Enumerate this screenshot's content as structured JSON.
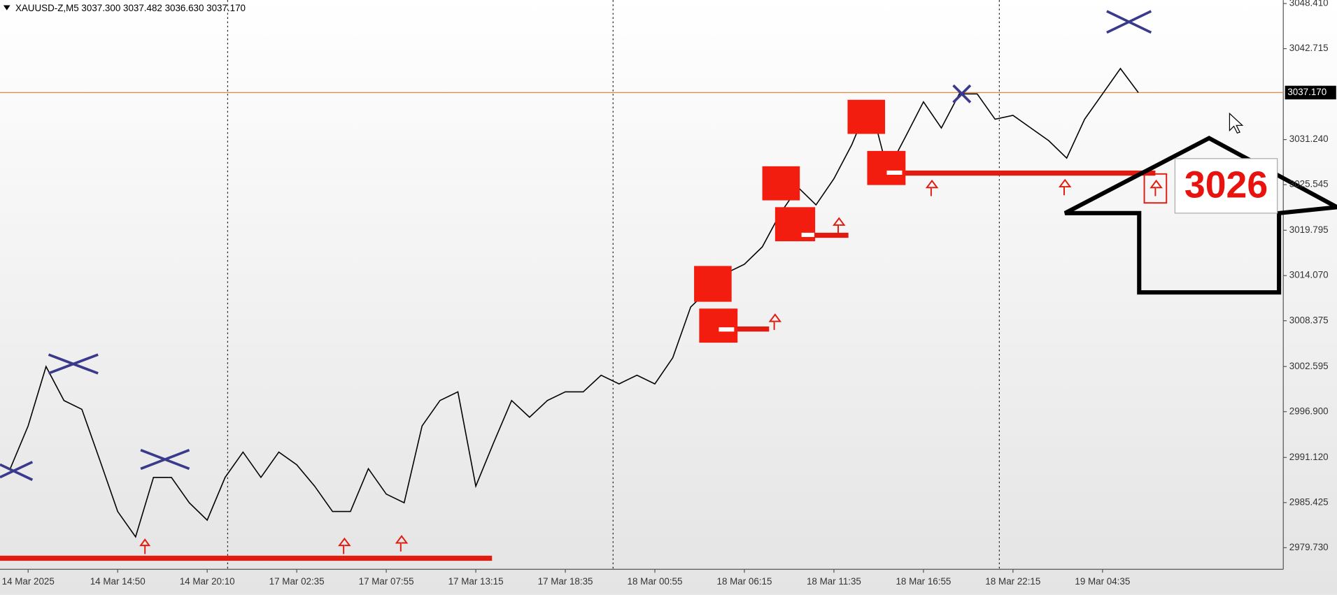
{
  "chart_data": {
    "type": "line",
    "title": "XAUUSD-Z,M5  3037.300 3037.482 3036.630 3037.170",
    "categories": [
      null,
      "14 Mar 2025",
      null,
      null,
      null,
      null,
      "14 Mar 14:50",
      null,
      null,
      null,
      null,
      "14 Mar 20:10",
      null,
      null,
      null,
      null,
      "17 Mar 02:35",
      null,
      null,
      null,
      null,
      "17 Mar 07:55",
      null,
      null,
      null,
      null,
      "17 Mar 13:15",
      null,
      null,
      null,
      null,
      "17 Mar 18:35",
      null,
      null,
      null,
      null,
      "18 Mar 00:55",
      null,
      null,
      null,
      null,
      "18 Mar 06:15",
      null,
      null,
      null,
      null,
      "18 Mar 11:35",
      null,
      null,
      null,
      null,
      "18 Mar 16:55",
      null,
      null,
      null,
      null,
      "18 Mar 22:15",
      null,
      null,
      null,
      null,
      "19 Mar 04:35",
      null,
      null
    ],
    "series": [
      {
        "name": "XAUUSD-Z,M5",
        "color": "#000000",
        "values": [
          2989.7,
          2995.1,
          3002.6,
          2998.3,
          2997.2,
          2990.8,
          2984.3,
          2981.1,
          2988.6,
          2988.6,
          2985.4,
          2983.2,
          2988.6,
          2991.8,
          2988.6,
          2991.8,
          2990.2,
          2987.5,
          2984.3,
          2984.3,
          2989.7,
          2986.5,
          2985.4,
          2995.1,
          2998.3,
          2999.4,
          2987.5,
          2993.0,
          2998.3,
          2996.2,
          2998.3,
          2999.4,
          2999.4,
          3001.5,
          3000.4,
          3001.5,
          3000.4,
          3003.7,
          3010.1,
          3012.3,
          3014.4,
          3015.5,
          3017.7,
          3021.9,
          3025.2,
          3023.0,
          3026.3,
          3030.6,
          3036.0,
          3027.3,
          3031.6,
          3036.0,
          3032.7,
          3037.0,
          3037.0,
          3033.8,
          3034.3,
          3032.7,
          3031.1,
          3028.9,
          3033.8,
          3037.0,
          3040.2,
          3037.17
        ]
      }
    ],
    "ylim": [
      2977.0,
      3048.84
    ],
    "yticks": [
      {
        "value": 3048.41,
        "label": "3048.410"
      },
      {
        "value": 3042.715,
        "label": "3042.715"
      },
      {
        "value": 3031.24,
        "label": "3031.240"
      },
      {
        "value": 3025.545,
        "label": "3025.545"
      },
      {
        "value": 3019.795,
        "label": "3019.795"
      },
      {
        "value": 3014.07,
        "label": "3014.070"
      },
      {
        "value": 3008.375,
        "label": "3008.375"
      },
      {
        "value": 3002.595,
        "label": "3002.595"
      },
      {
        "value": 2996.9,
        "label": "2996.900"
      },
      {
        "value": 2991.12,
        "label": "2991.120"
      },
      {
        "value": 2985.425,
        "label": "2985.425"
      },
      {
        "value": 2979.73,
        "label": "2979.730"
      }
    ],
    "price_line": {
      "value": 3037.17,
      "label": "3037.170"
    },
    "annotation": "3026"
  }
}
